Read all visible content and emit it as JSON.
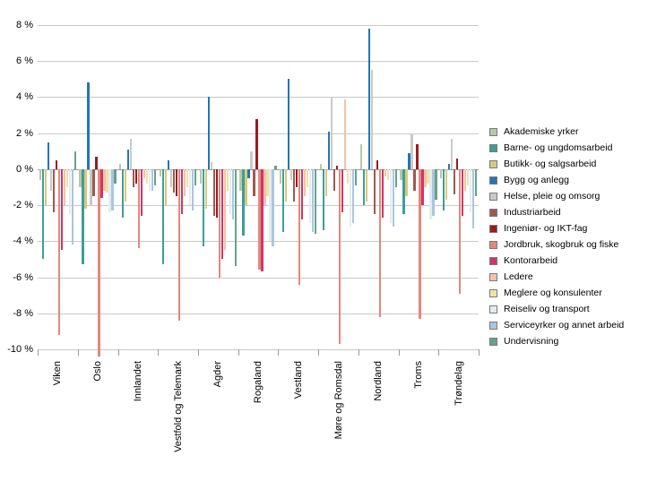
{
  "chart_data": {
    "type": "bar",
    "title": "",
    "unit": "%",
    "ylim": [
      -10,
      8
    ],
    "ytick_step": 2,
    "ytick_suffix": " %",
    "grid": true,
    "legend_position": "right",
    "categories": [
      "Viken",
      "Oslo",
      "Innlandet",
      "Vestfold og Telemark",
      "Agder",
      "Rogaland",
      "Vestland",
      "Møre og Romsdal",
      "Nordland",
      "Troms",
      "Trøndelag"
    ],
    "series": [
      {
        "name": "Akademiske yrker",
        "color": "#b7c9a5",
        "values": [
          -0.6,
          -1.0,
          0.3,
          -0.4,
          -0.8,
          -1.2,
          -0.8,
          0.3,
          1.4,
          -0.6,
          -0.5
        ]
      },
      {
        "name": "Barne- og ungdomsarbeid",
        "color": "#3d9e9b",
        "values": [
          -5.0,
          -5.3,
          -2.7,
          -5.3,
          -4.3,
          -3.7,
          -3.5,
          -3.4,
          -2.0,
          -2.5,
          -2.3
        ]
      },
      {
        "name": "Butikk- og salgsarbeid",
        "color": "#d9c97e",
        "values": [
          -2.0,
          -2.2,
          -1.8,
          -2.0,
          -2.2,
          -2.0,
          -1.8,
          -1.5,
          -1.8,
          -1.5,
          -1.7
        ]
      },
      {
        "name": "Bygg og anlegg",
        "color": "#2276b4",
        "values": [
          1.5,
          4.8,
          1.1,
          0.5,
          4.0,
          -0.5,
          5.0,
          2.1,
          7.8,
          0.9,
          0.3
        ]
      },
      {
        "name": "Helse, pleie og omsorg",
        "color": "#c9c9c9",
        "values": [
          -1.2,
          -2.0,
          1.7,
          -1.0,
          0.4,
          1.0,
          -0.6,
          4.0,
          5.5,
          2.0,
          1.7
        ]
      },
      {
        "name": "Industriarbeid",
        "color": "#9e5a4f",
        "values": [
          -2.4,
          -1.5,
          -1.0,
          -1.3,
          -2.6,
          -1.5,
          -1.8,
          -1.2,
          -2.5,
          -1.2,
          -1.4
        ]
      },
      {
        "name": "Ingeniør- og IKT-fag",
        "color": "#9c1a1e",
        "values": [
          0.5,
          0.7,
          -0.8,
          -1.5,
          -2.7,
          2.8,
          -1.0,
          0.2,
          0.5,
          1.4,
          0.6
        ]
      },
      {
        "name": "Jordbruk, skogbruk og fiske",
        "color": "#e4887c",
        "values": [
          -9.2,
          -10.4,
          -4.4,
          -8.4,
          -6.0,
          -5.6,
          -6.4,
          -9.7,
          -8.2,
          -8.3,
          -6.9
        ]
      },
      {
        "name": "Kontorarbeid",
        "color": "#cf3667",
        "values": [
          -4.5,
          -1.6,
          -2.6,
          -2.5,
          -5.0,
          -5.7,
          -2.8,
          -2.4,
          -2.7,
          -2.0,
          -2.6
        ]
      },
      {
        "name": "Ledere",
        "color": "#f2c3a7",
        "values": [
          -2.0,
          -1.2,
          -0.5,
          -1.5,
          -4.5,
          -2.0,
          -1.5,
          3.9,
          -0.4,
          -1.0,
          -1.2
        ]
      },
      {
        "name": "Meglere og konsulenter",
        "color": "#efe2a2",
        "values": [
          -1.0,
          -1.3,
          -0.8,
          -1.0,
          -1.2,
          -1.5,
          -1.0,
          -0.8,
          -0.6,
          -0.8,
          -0.9
        ]
      },
      {
        "name": "Reiseliv og transport",
        "color": "#e4ebf1",
        "values": [
          -2.5,
          -2.4,
          -1.2,
          -2.0,
          -2.5,
          -4.0,
          -3.0,
          -3.2,
          -3.0,
          -2.8,
          -2.4
        ]
      },
      {
        "name": "Serviceyrker og annet arbeid",
        "color": "#a9c6df",
        "values": [
          -4.2,
          -2.3,
          -1.2,
          -2.3,
          -2.8,
          -4.3,
          -3.5,
          -3.0,
          -3.2,
          -2.6,
          -3.3
        ]
      },
      {
        "name": "Undervisning",
        "color": "#67a18c",
        "values": [
          1.0,
          -0.8,
          -0.9,
          -0.9,
          -5.4,
          0.2,
          -3.6,
          -0.9,
          -1.0,
          -1.7,
          -1.5
        ]
      }
    ]
  }
}
